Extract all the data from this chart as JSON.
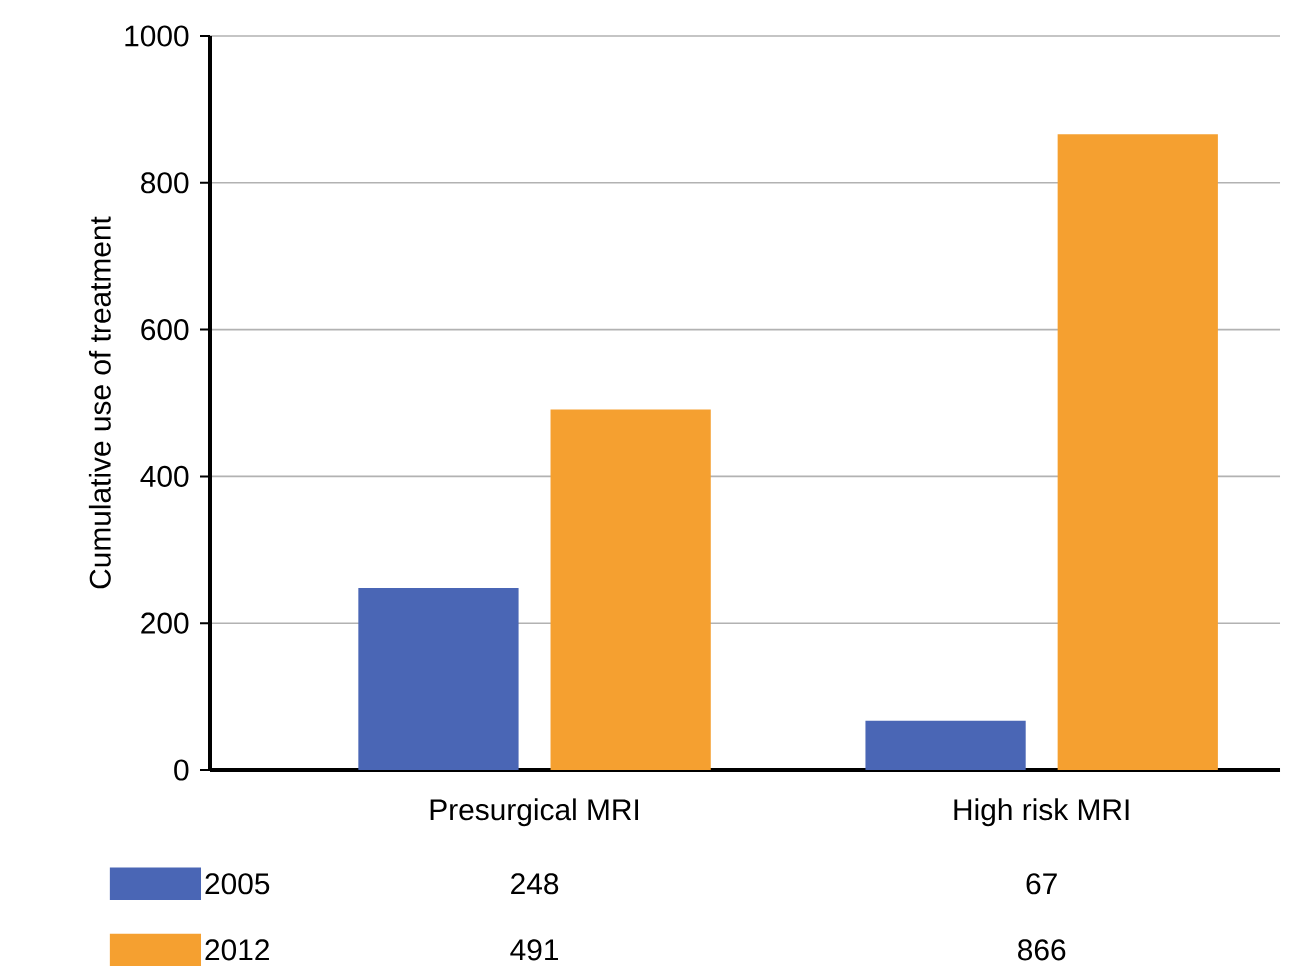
{
  "chart_data": {
    "type": "bar",
    "ylabel": "Cumulative use of treatment",
    "categories": [
      "Presurgical MRI",
      "High risk MRI"
    ],
    "series": [
      {
        "name": "2005",
        "color": "#4a66b5",
        "values": [
          248,
          67
        ]
      },
      {
        "name": "2012",
        "color": "#f5a030",
        "values": [
          491,
          866
        ]
      }
    ],
    "ylim": [
      0,
      1000
    ],
    "yticks": [
      0,
      200,
      400,
      600,
      800,
      1000
    ],
    "grid": "y",
    "legend": "bottom",
    "data_labels": true
  }
}
